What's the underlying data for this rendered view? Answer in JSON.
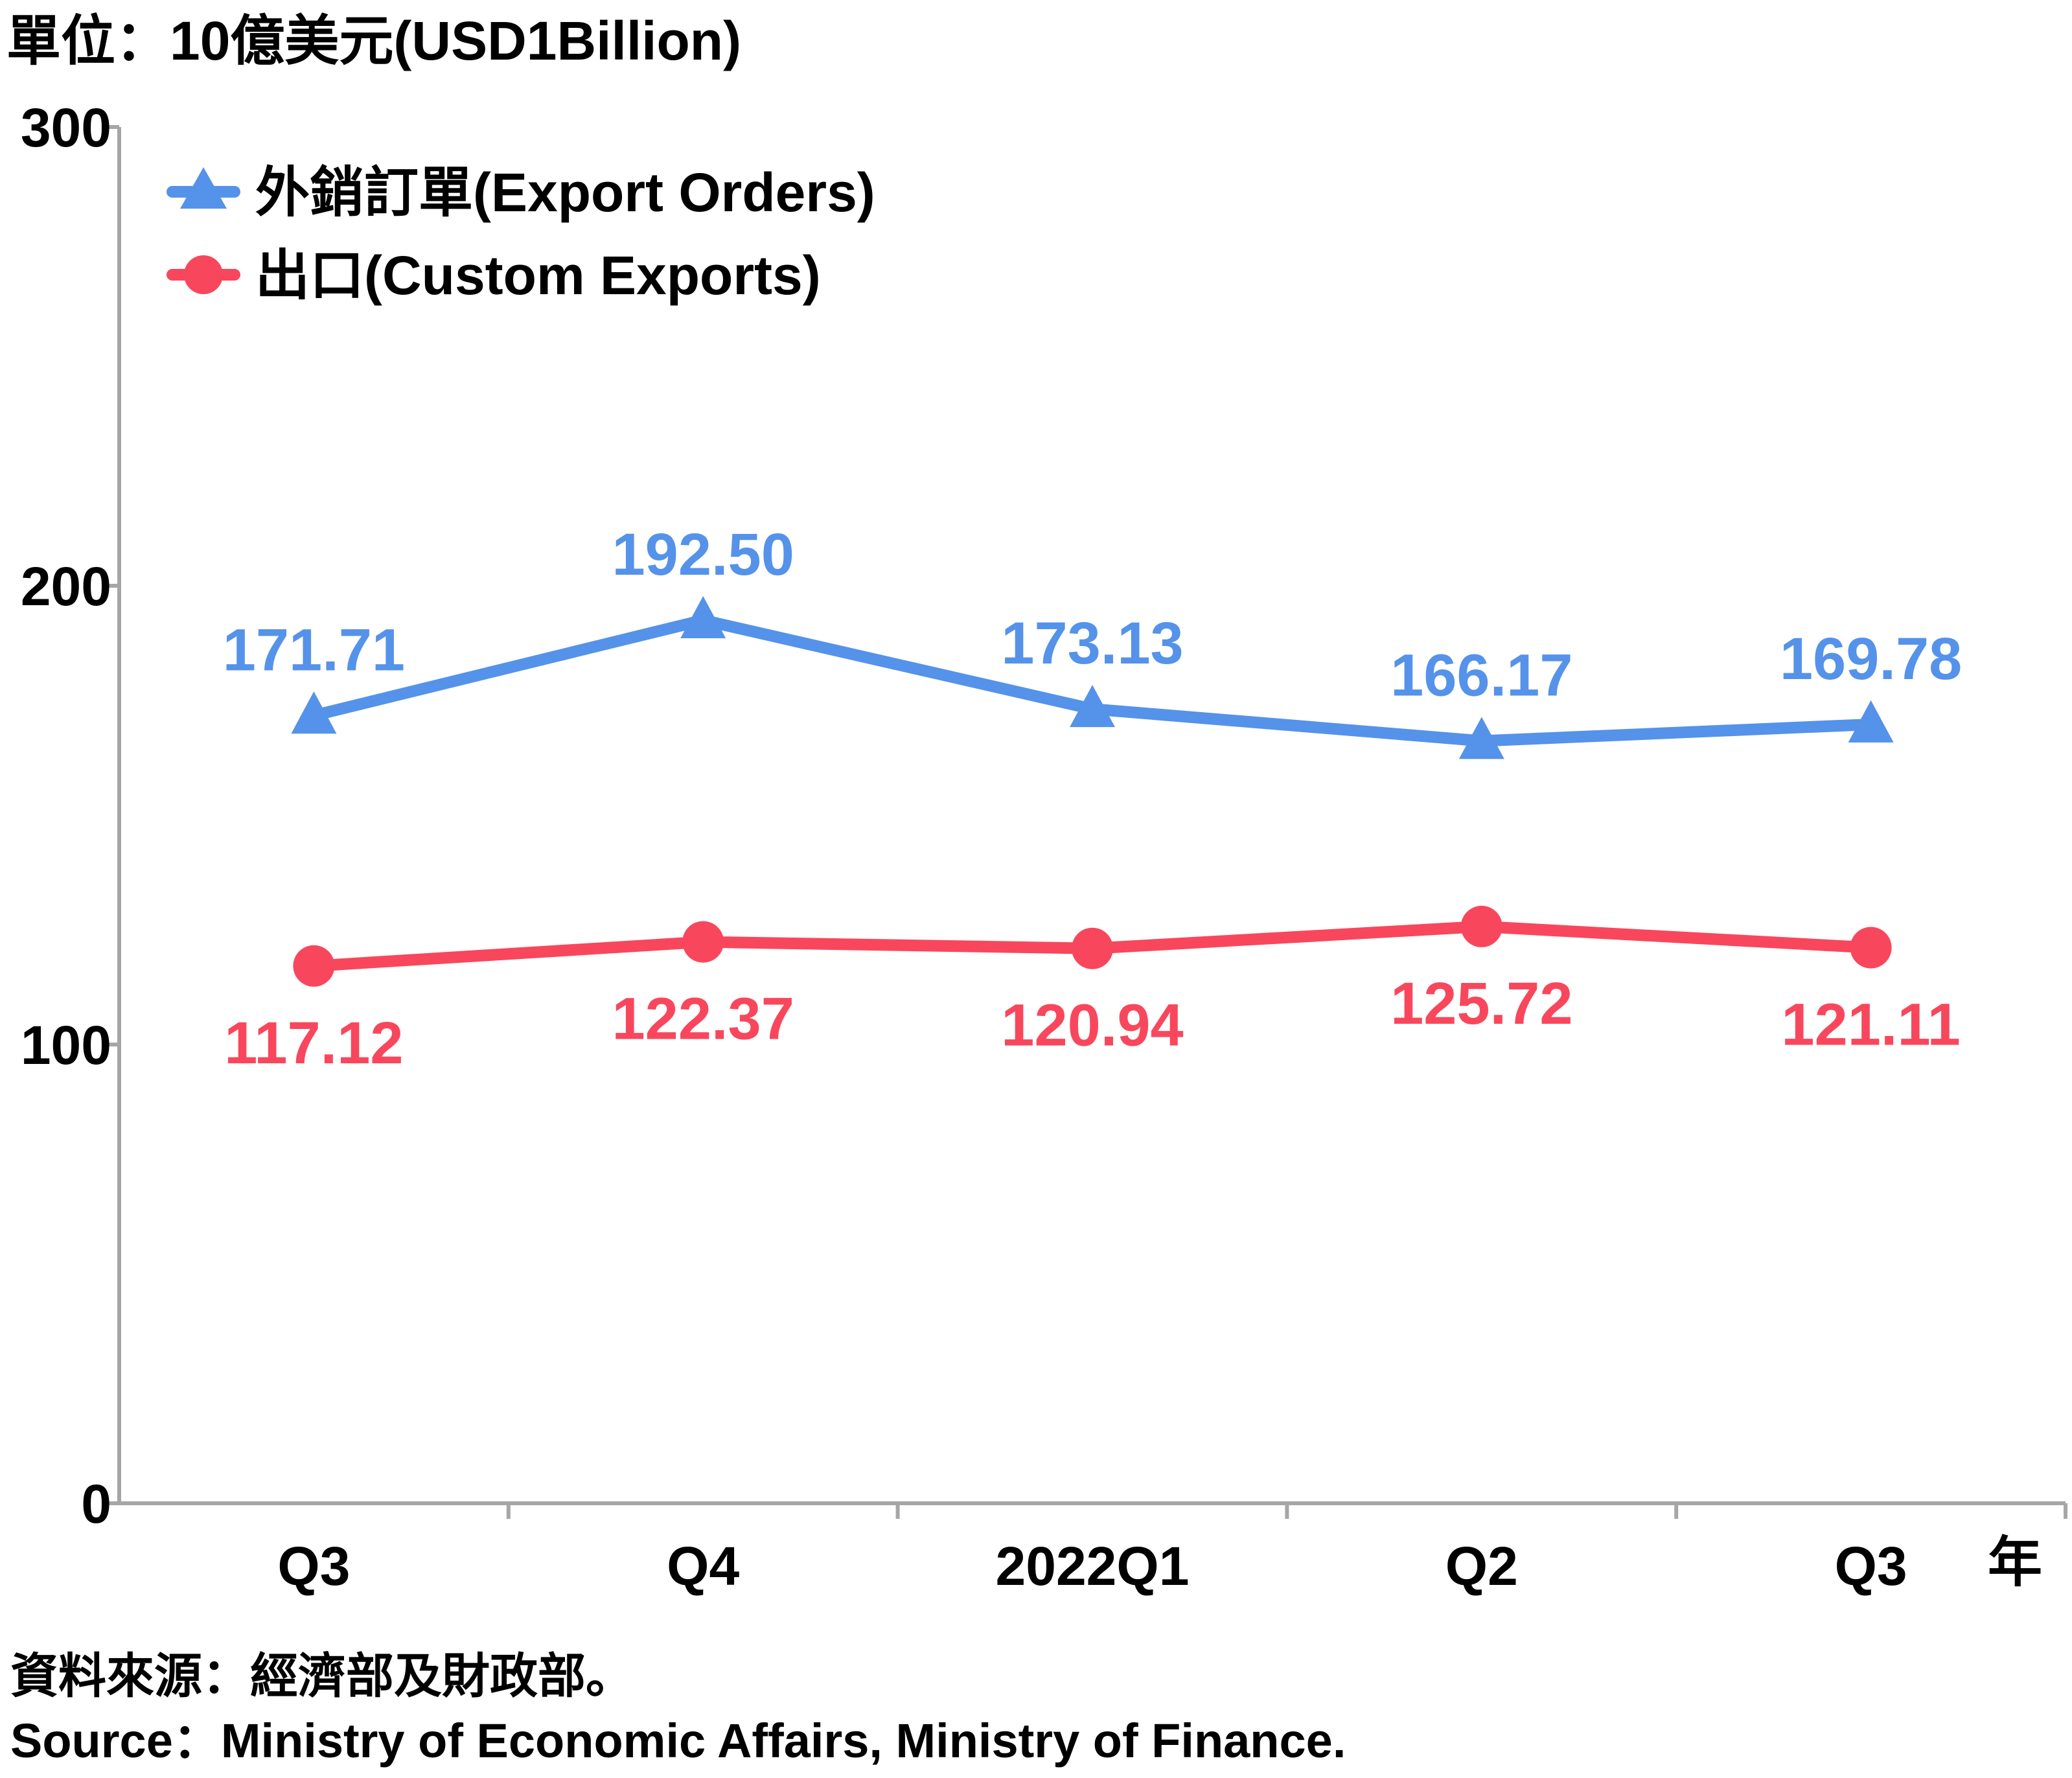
{
  "chart_data": {
    "type": "line",
    "unit_label": "單位：10億美元(USD1Billion)",
    "categories": [
      "Q3",
      "Q4",
      "2022Q1",
      "Q2",
      "Q3"
    ],
    "x_axis_unit": "年",
    "ylim": [
      0,
      300
    ],
    "y_ticks": [
      "0",
      "100",
      "200",
      "300"
    ],
    "grid": false,
    "legend_position": "top-left",
    "series": [
      {
        "name": "外銷訂單(Export Orders)",
        "marker": "triangle",
        "color": "#5592EA",
        "values": [
          171.71,
          192.5,
          173.13,
          166.17,
          169.78
        ],
        "labels": [
          "171.71",
          "192.50",
          "173.13",
          "166.17",
          "169.78"
        ]
      },
      {
        "name": "出口(Custom Exports)",
        "marker": "circle",
        "color": "#F8475C",
        "values": [
          117.12,
          122.37,
          120.94,
          125.72,
          121.11
        ],
        "labels": [
          "117.12",
          "122.37",
          "120.94",
          "125.72",
          "121.11"
        ]
      }
    ]
  },
  "source": {
    "zh": "資料來源：經濟部及財政部。",
    "en": "Source：Ministry of Economic Affairs, Ministry of Finance."
  }
}
